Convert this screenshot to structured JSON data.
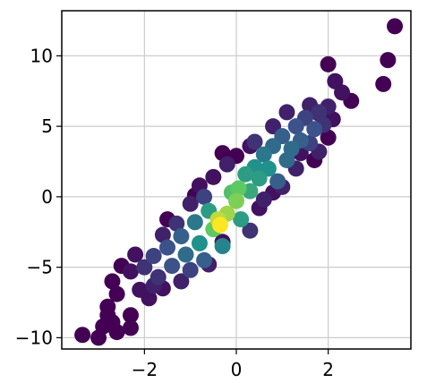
{
  "chart_data": {
    "type": "scatter",
    "title": "",
    "xlabel": "",
    "ylabel": "",
    "xlim": [
      -3.8,
      3.8
    ],
    "ylim": [
      -10.8,
      13.2
    ],
    "grid": true,
    "xticks": [
      {
        "value": -2,
        "label": "−2"
      },
      {
        "value": 0,
        "label": "0"
      },
      {
        "value": 2,
        "label": "2"
      }
    ],
    "yticks": [
      {
        "value": -10,
        "label": "−10"
      },
      {
        "value": -5,
        "label": "−5"
      },
      {
        "value": 0,
        "label": "0"
      },
      {
        "value": 5,
        "label": "5"
      },
      {
        "value": 10,
        "label": "10"
      }
    ],
    "colormap": "viridis",
    "color_stops": [
      "#440154",
      "#3b528b",
      "#21918c",
      "#5ec962",
      "#fde725"
    ],
    "points": [
      {
        "x": 3.45,
        "y": 12.1,
        "d": 0.0
      },
      {
        "x": 3.3,
        "y": 9.7,
        "d": 0.0
      },
      {
        "x": 3.2,
        "y": 8.0,
        "d": 0.0
      },
      {
        "x": 2.0,
        "y": 9.4,
        "d": 0.0
      },
      {
        "x": 2.15,
        "y": 8.2,
        "d": 0.05
      },
      {
        "x": 2.5,
        "y": 6.8,
        "d": 0.0
      },
      {
        "x": 2.3,
        "y": 7.4,
        "d": 0.05
      },
      {
        "x": 2.0,
        "y": 4.2,
        "d": 0.0
      },
      {
        "x": 1.6,
        "y": 6.5,
        "d": 0.1
      },
      {
        "x": 1.8,
        "y": 5.9,
        "d": 0.1
      },
      {
        "x": 2.1,
        "y": 5.5,
        "d": 0.05
      },
      {
        "x": 1.4,
        "y": 3.1,
        "d": 0.05
      },
      {
        "x": 1.7,
        "y": 2.6,
        "d": 0.0
      },
      {
        "x": 1.1,
        "y": 6.0,
        "d": 0.1
      },
      {
        "x": 0.0,
        "y": 2.9,
        "d": 0.0
      },
      {
        "x": -0.3,
        "y": 3.1,
        "d": 0.0
      },
      {
        "x": 0.3,
        "y": 3.6,
        "d": 0.05
      },
      {
        "x": -0.9,
        "y": 0.1,
        "d": 0.0
      },
      {
        "x": -0.5,
        "y": 1.4,
        "d": 0.05
      },
      {
        "x": 0.5,
        "y": -0.8,
        "d": 0.05
      },
      {
        "x": 0.8,
        "y": 0.3,
        "d": 0.05
      },
      {
        "x": -0.3,
        "y": -3.2,
        "d": 0.05
      },
      {
        "x": -1.2,
        "y": -6.0,
        "d": 0.1
      },
      {
        "x": -1.6,
        "y": -6.5,
        "d": 0.05
      },
      {
        "x": -1.9,
        "y": -7.2,
        "d": 0.05
      },
      {
        "x": -1.5,
        "y": -1.6,
        "d": 0.0
      },
      {
        "x": -2.2,
        "y": -4.1,
        "d": 0.05
      },
      {
        "x": -2.3,
        "y": -5.3,
        "d": 0.05
      },
      {
        "x": -2.5,
        "y": -4.9,
        "d": 0.0
      },
      {
        "x": -2.7,
        "y": -6.0,
        "d": 0.0
      },
      {
        "x": -2.6,
        "y": -6.9,
        "d": 0.0
      },
      {
        "x": -2.8,
        "y": -7.8,
        "d": 0.0
      },
      {
        "x": -2.7,
        "y": -8.9,
        "d": 0.0
      },
      {
        "x": -2.8,
        "y": -8.4,
        "d": 0.0
      },
      {
        "x": -2.3,
        "y": -8.4,
        "d": 0.0
      },
      {
        "x": -2.3,
        "y": -9.3,
        "d": 0.0
      },
      {
        "x": -2.9,
        "y": -9.2,
        "d": 0.0
      },
      {
        "x": -3.0,
        "y": -10.0,
        "d": 0.0
      },
      {
        "x": -3.35,
        "y": -9.8,
        "d": 0.0
      },
      {
        "x": -2.6,
        "y": -9.6,
        "d": 0.0
      },
      {
        "x": -2.0,
        "y": -5.0,
        "d": 0.15
      },
      {
        "x": -1.8,
        "y": -4.2,
        "d": 0.2
      },
      {
        "x": -1.7,
        "y": -5.7,
        "d": 0.15
      },
      {
        "x": -1.5,
        "y": -3.6,
        "d": 0.25
      },
      {
        "x": -1.4,
        "y": -4.9,
        "d": 0.25
      },
      {
        "x": -1.2,
        "y": -2.8,
        "d": 0.3
      },
      {
        "x": -1.1,
        "y": -4.1,
        "d": 0.35
      },
      {
        "x": -1.0,
        "y": -5.2,
        "d": 0.2
      },
      {
        "x": -0.9,
        "y": -1.8,
        "d": 0.4
      },
      {
        "x": -0.8,
        "y": -3.3,
        "d": 0.5
      },
      {
        "x": -0.7,
        "y": -4.5,
        "d": 0.3
      },
      {
        "x": -0.6,
        "y": -1.0,
        "d": 0.55
      },
      {
        "x": -0.5,
        "y": -2.3,
        "d": 0.75
      },
      {
        "x": -0.4,
        "y": -1.6,
        "d": 0.9
      },
      {
        "x": -0.35,
        "y": -2.0,
        "d": 1.0
      },
      {
        "x": -0.3,
        "y": -3.5,
        "d": 0.45
      },
      {
        "x": -0.2,
        "y": -1.2,
        "d": 0.85
      },
      {
        "x": -0.1,
        "y": 0.3,
        "d": 0.7
      },
      {
        "x": 0.0,
        "y": -0.3,
        "d": 0.8
      },
      {
        "x": 0.05,
        "y": 0.6,
        "d": 0.75
      },
      {
        "x": 0.1,
        "y": -1.6,
        "d": 0.55
      },
      {
        "x": 0.2,
        "y": 1.6,
        "d": 0.55
      },
      {
        "x": 0.3,
        "y": 0.4,
        "d": 0.6
      },
      {
        "x": 0.4,
        "y": 2.1,
        "d": 0.5
      },
      {
        "x": 0.5,
        "y": 1.3,
        "d": 0.55
      },
      {
        "x": 0.6,
        "y": 3.0,
        "d": 0.4
      },
      {
        "x": 0.7,
        "y": 2.0,
        "d": 0.5
      },
      {
        "x": 0.8,
        "y": 3.6,
        "d": 0.35
      },
      {
        "x": 0.9,
        "y": 1.1,
        "d": 0.3
      },
      {
        "x": 1.0,
        "y": 4.3,
        "d": 0.3
      },
      {
        "x": 1.1,
        "y": 2.6,
        "d": 0.35
      },
      {
        "x": 1.2,
        "y": 3.4,
        "d": 0.35
      },
      {
        "x": 1.3,
        "y": 5.0,
        "d": 0.25
      },
      {
        "x": 1.4,
        "y": 4.0,
        "d": 0.3
      },
      {
        "x": 1.5,
        "y": 5.6,
        "d": 0.2
      },
      {
        "x": 1.6,
        "y": 3.8,
        "d": 0.2
      },
      {
        "x": 1.7,
        "y": 4.8,
        "d": 0.25
      },
      {
        "x": 1.8,
        "y": 6.0,
        "d": 0.15
      },
      {
        "x": 1.9,
        "y": 5.1,
        "d": 0.15
      },
      {
        "x": 2.0,
        "y": 6.4,
        "d": 0.1
      },
      {
        "x": -1.0,
        "y": -0.5,
        "d": 0.1
      },
      {
        "x": -0.8,
        "y": 0.8,
        "d": 0.05
      },
      {
        "x": -0.2,
        "y": 2.3,
        "d": 0.1
      },
      {
        "x": 0.6,
        "y": -0.2,
        "d": 0.1
      },
      {
        "x": 1.0,
        "y": 0.7,
        "d": 0.1
      },
      {
        "x": -1.8,
        "y": -6.3,
        "d": 0.1
      },
      {
        "x": -2.1,
        "y": -6.6,
        "d": 0.05
      },
      {
        "x": -0.6,
        "y": -4.8,
        "d": 0.1
      },
      {
        "x": 0.3,
        "y": -2.4,
        "d": 0.15
      },
      {
        "x": 1.3,
        "y": 2.0,
        "d": 0.1
      },
      {
        "x": 1.8,
        "y": 3.2,
        "d": 0.1
      },
      {
        "x": 0.8,
        "y": 5.0,
        "d": 0.1
      },
      {
        "x": 0.4,
        "y": 3.9,
        "d": 0.15
      },
      {
        "x": -0.7,
        "y": 0.0,
        "d": 0.2
      },
      {
        "x": -1.3,
        "y": -1.9,
        "d": 0.15
      },
      {
        "x": -1.6,
        "y": -2.7,
        "d": 0.1
      }
    ]
  }
}
